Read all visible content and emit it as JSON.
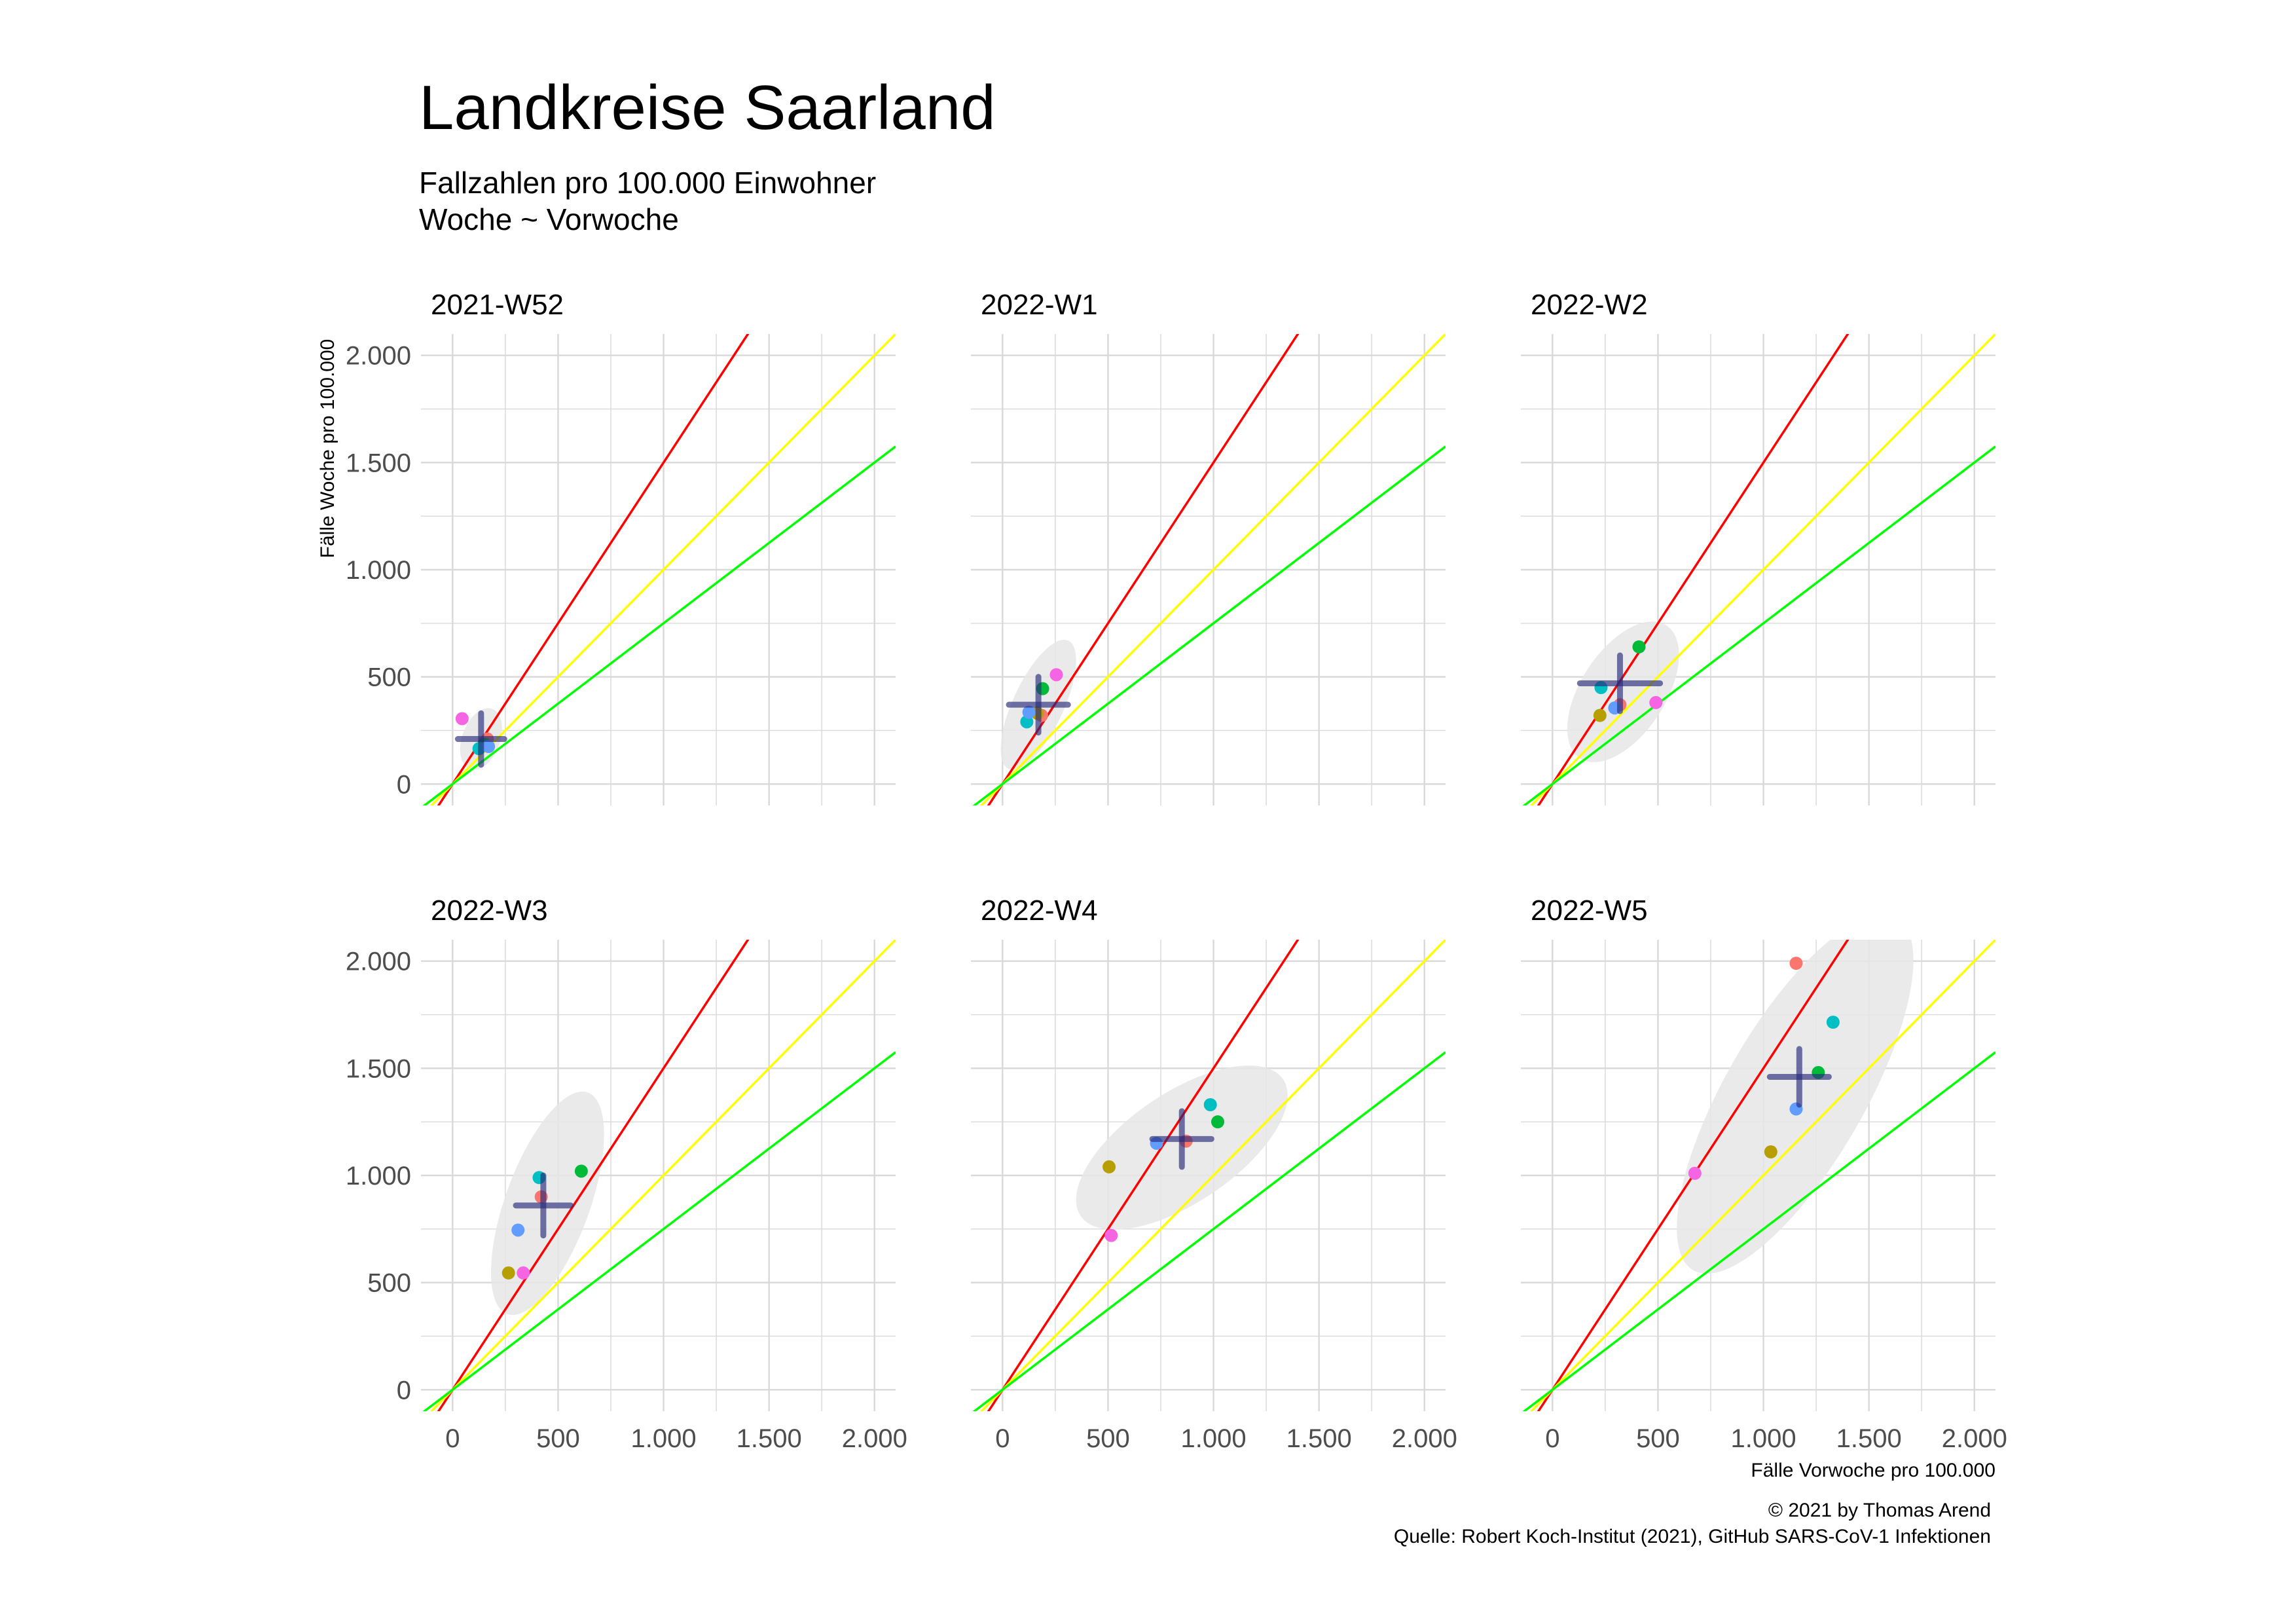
{
  "title": "Landkreise Saarland",
  "subtitle_lines": [
    "Fallzahlen pro 100.000 Einwohner",
    "Woche ~ Vorwoche"
  ],
  "caption_lines": [
    "© 2021 by Thomas Arend",
    "Quelle: Robert Koch-Institut (2021), GitHub SARS-CoV-1 Infektionen"
  ],
  "colors": {
    "red_line": "#ff0000",
    "yellow_line": "#ffff00",
    "green_line": "#00ff00",
    "mean_cross": "#27297a",
    "ellipse": "#e6e6e6",
    "grid": "#d9d9d9",
    "district_colors": [
      "#f8766d",
      "#b79f00",
      "#00ba38",
      "#00bfc4",
      "#619cff",
      "#f564e3"
    ]
  },
  "chart_data": {
    "type": "scatter",
    "xlabel": "Fälle Vorwoche pro 100.000",
    "ylabel": "Fälle Woche pro 100.000",
    "xlim": [
      -150,
      2100
    ],
    "ylim": [
      -100,
      2100
    ],
    "x_ticks": [
      0,
      500,
      1000,
      1500,
      2000
    ],
    "x_tick_labels": [
      "0",
      "500",
      "1.000",
      "1.500",
      "2.000"
    ],
    "y_ticks": [
      0,
      500,
      1000,
      1500,
      2000
    ],
    "y_tick_labels": [
      "0",
      "500",
      "1.000",
      "1.500",
      "2.000"
    ],
    "reference_lines": [
      {
        "color": "red",
        "slope": 1.5
      },
      {
        "color": "yellow",
        "slope": 1.0
      },
      {
        "color": "green",
        "slope": 0.75
      }
    ],
    "panels": [
      {
        "title": "2021-W52",
        "points": [
          [
            165,
            210
          ],
          [
            150,
            190
          ],
          [
            150,
            185
          ],
          [
            125,
            165
          ],
          [
            170,
            175
          ],
          [
            45,
            305
          ]
        ],
        "mean": [
          135,
          210
        ],
        "sd": [
          110,
          120
        ],
        "ellipse": {
          "center": [
            135,
            210
          ],
          "rx": 90,
          "ry": 150,
          "angle": 20
        }
      },
      {
        "title": "2022-W1",
        "points": [
          [
            185,
            320
          ],
          [
            165,
            330
          ],
          [
            190,
            445
          ],
          [
            115,
            290
          ],
          [
            125,
            335
          ],
          [
            255,
            510
          ]
        ],
        "mean": [
          170,
          370
        ],
        "sd": [
          140,
          130
        ],
        "ellipse": {
          "center": [
            170,
            370
          ],
          "rx": 120,
          "ry": 330,
          "angle": 25
        }
      },
      {
        "title": "2022-W2",
        "points": [
          [
            320,
            370
          ],
          [
            225,
            320
          ],
          [
            410,
            640
          ],
          [
            230,
            450
          ],
          [
            295,
            355
          ],
          [
            490,
            380
          ]
        ],
        "mean": [
          320,
          470
        ],
        "sd": [
          190,
          130
        ],
        "ellipse": {
          "center": [
            335,
            430
          ],
          "rx": 200,
          "ry": 370,
          "angle": 33
        }
      },
      {
        "title": "2022-W3",
        "points": [
          [
            420,
            900
          ],
          [
            265,
            545
          ],
          [
            610,
            1020
          ],
          [
            410,
            990
          ],
          [
            310,
            745
          ],
          [
            335,
            545
          ]
        ],
        "mean": [
          430,
          860
        ],
        "sd": [
          130,
          140
        ],
        "ellipse": {
          "center": [
            450,
            870
          ],
          "rx": 200,
          "ry": 550,
          "angle": 20
        }
      },
      {
        "title": "2022-W4",
        "points": [
          [
            870,
            1160
          ],
          [
            505,
            1040
          ],
          [
            1020,
            1250
          ],
          [
            985,
            1330
          ],
          [
            730,
            1150
          ],
          [
            515,
            720
          ]
        ],
        "mean": [
          850,
          1170
        ],
        "sd": [
          140,
          130
        ],
        "ellipse": {
          "center": [
            850,
            1130
          ],
          "rx": 260,
          "ry": 570,
          "angle": 56
        }
      },
      {
        "title": "2022-W5",
        "points": [
          [
            1155,
            1990
          ],
          [
            1035,
            1110
          ],
          [
            1260,
            1480
          ],
          [
            1330,
            1715
          ],
          [
            1155,
            1310
          ],
          [
            675,
            1010
          ]
        ],
        "mean": [
          1170,
          1460
        ],
        "sd": [
          140,
          130
        ],
        "ellipse": {
          "center": [
            1150,
            1380
          ],
          "rx": 330,
          "ry": 950,
          "angle": 30
        }
      }
    ]
  }
}
